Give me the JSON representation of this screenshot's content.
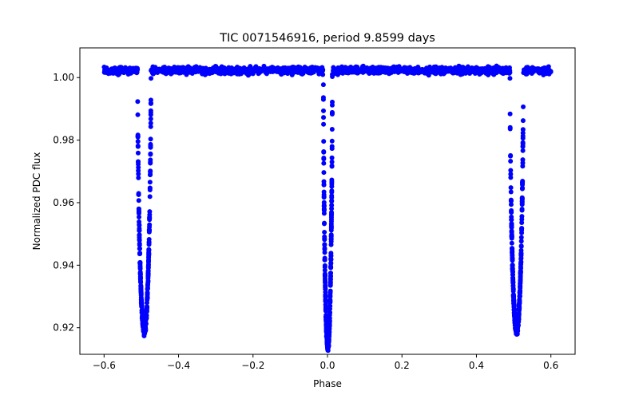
{
  "chart_data": {
    "type": "scatter",
    "title": "TIC 0071546916, period 9.8599 days",
    "xlabel": "Phase",
    "ylabel": "Normalized PDC flux",
    "xlim": [
      -0.665,
      0.665
    ],
    "ylim": [
      0.9115,
      1.0095
    ],
    "xticks": [
      -0.6,
      -0.4,
      -0.2,
      0.0,
      0.2,
      0.4,
      0.6
    ],
    "xtick_labels": [
      "−0.6",
      "−0.4",
      "−0.2",
      "0.0",
      "0.2",
      "0.4",
      "0.6"
    ],
    "yticks": [
      0.92,
      0.94,
      0.96,
      0.98,
      1.0
    ],
    "ytick_labels": [
      "0.92",
      "0.94",
      "0.96",
      "0.98",
      "1.00"
    ],
    "grid": false,
    "series": [
      {
        "name": "PDC flux",
        "color": "#0000ff",
        "marker": "circle",
        "baseline": 1.0023,
        "x_range": [
          -0.6,
          0.6
        ],
        "eclipses": [
          {
            "center": -0.492,
            "min_flux": 0.919,
            "half_width": 0.018
          },
          {
            "center": 0.001,
            "min_flux": 0.914,
            "half_width": 0.012
          },
          {
            "center": 0.508,
            "min_flux": 0.919,
            "half_width": 0.018
          }
        ]
      }
    ]
  }
}
